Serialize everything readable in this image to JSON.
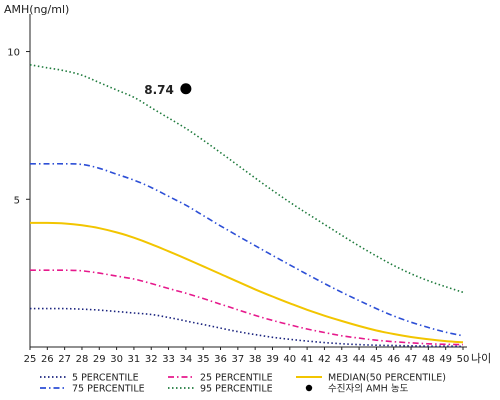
{
  "chart_data": {
    "type": "line",
    "ylabel": "AMH(ng/ml)",
    "xlabel": "나이",
    "x": [
      25,
      26,
      27,
      28,
      29,
      30,
      31,
      32,
      33,
      34,
      35,
      36,
      37,
      38,
      39,
      40,
      41,
      42,
      43,
      44,
      45,
      46,
      47,
      48,
      49,
      50
    ],
    "x_tick_labels": [
      "25",
      "26",
      "27",
      "28",
      "29",
      "30",
      "31",
      "32",
      "33",
      "34",
      "35",
      "36",
      "37",
      "38",
      "39",
      "40",
      "41",
      "42",
      "43",
      "44",
      "45",
      "46",
      "47",
      "48",
      "49",
      "50"
    ],
    "xlim": [
      25,
      50
    ],
    "ylim": [
      0,
      11
    ],
    "y_ticks": [
      5,
      10
    ],
    "y_tick_labels": [
      "5",
      "10"
    ],
    "grid": false,
    "legend_position": "bottom",
    "series": [
      {
        "name": "5 PERCENTILE",
        "color": "#1a237e",
        "dash": "dot",
        "values": [
          1.3,
          1.3,
          1.3,
          1.28,
          1.25,
          1.2,
          1.15,
          1.1,
          1.0,
          0.88,
          0.76,
          0.64,
          0.52,
          0.42,
          0.33,
          0.26,
          0.2,
          0.15,
          0.11,
          0.08,
          0.06,
          0.05,
          0.04,
          0.03,
          0.03,
          0.02
        ]
      },
      {
        "name": "25 PERCENTILE",
        "color": "#e6198c",
        "dash": "dashdot",
        "values": [
          2.6,
          2.6,
          2.6,
          2.58,
          2.5,
          2.4,
          2.3,
          2.15,
          1.98,
          1.82,
          1.64,
          1.45,
          1.26,
          1.07,
          0.9,
          0.75,
          0.61,
          0.49,
          0.38,
          0.3,
          0.23,
          0.18,
          0.14,
          0.11,
          0.09,
          0.08
        ]
      },
      {
        "name": "MEDIAN(50 PERCENTILE)",
        "color": "#f2c500",
        "dash": "solid",
        "values": [
          4.2,
          4.2,
          4.18,
          4.12,
          4.02,
          3.88,
          3.7,
          3.48,
          3.24,
          2.99,
          2.73,
          2.47,
          2.21,
          1.95,
          1.71,
          1.48,
          1.26,
          1.06,
          0.88,
          0.71,
          0.56,
          0.44,
          0.34,
          0.26,
          0.2,
          0.16
        ]
      },
      {
        "name": "75 PERCENTILE",
        "color": "#2d4fd6",
        "dash": "dashdot",
        "values": [
          6.2,
          6.2,
          6.2,
          6.18,
          6.05,
          5.85,
          5.65,
          5.4,
          5.1,
          4.8,
          4.45,
          4.1,
          3.76,
          3.43,
          3.1,
          2.78,
          2.46,
          2.15,
          1.85,
          1.57,
          1.3,
          1.05,
          0.84,
          0.66,
          0.5,
          0.38
        ]
      },
      {
        "name": "95 PERCENTILE",
        "color": "#1e7a3c",
        "dash": "dot",
        "values": [
          9.55,
          9.45,
          9.35,
          9.2,
          8.95,
          8.7,
          8.45,
          8.1,
          7.75,
          7.4,
          7.0,
          6.58,
          6.15,
          5.72,
          5.3,
          4.9,
          4.52,
          4.15,
          3.78,
          3.42,
          3.08,
          2.76,
          2.48,
          2.24,
          2.04,
          1.85
        ]
      }
    ],
    "marker": {
      "name": "수진자의 AMH 농도",
      "x": 34,
      "y": 8.74,
      "label": "8.74",
      "color": "#000000"
    }
  }
}
